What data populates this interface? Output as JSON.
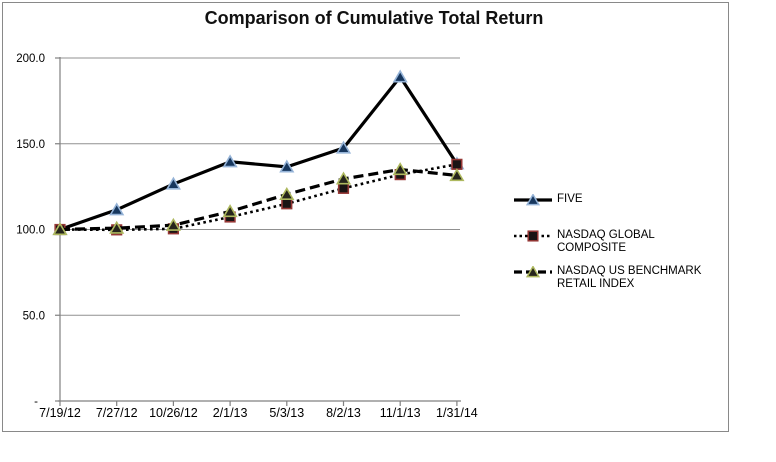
{
  "window": {
    "background": "#ffffff",
    "frame_border_color": "#898989"
  },
  "chart_data": {
    "type": "line",
    "title": "Comparison of Cumulative Total Return",
    "x_categories": [
      "7/19/12",
      "7/27/12",
      "10/26/12",
      "2/1/13",
      "5/3/13",
      "8/2/13",
      "11/1/13",
      "1/31/14"
    ],
    "y_axis": {
      "ticks": [
        {
          "value": 200,
          "label": "200.0"
        },
        {
          "value": 150,
          "label": "150.0"
        },
        {
          "value": 100,
          "label": "100.0"
        },
        {
          "value": 50,
          "label": "50.0"
        },
        {
          "value": 0,
          "label": "-"
        }
      ],
      "range": [
        0,
        200
      ]
    },
    "grid": true,
    "legend_position": "right",
    "grid_color": "#909090",
    "axis_color": "#808080",
    "text_color": "#000000",
    "series": [
      {
        "name": "FIVE",
        "line_color": "#000000",
        "line_width": 3.2,
        "dash": "",
        "legend_dash": "",
        "marker": "triangle",
        "marker_fill": "#17375E",
        "marker_stroke": "#95B3D7",
        "values": [
          100.0,
          111.5,
          126.5,
          139.5,
          136.5,
          147.5,
          189.0,
          138.3
        ]
      },
      {
        "name": "NASDAQ GLOBAL COMPOSITE",
        "line_color": "#000000",
        "line_width": 2.6,
        "dash": "2.6 3.4",
        "legend_dash": "2.5 3",
        "marker": "square",
        "marker_fill": "#1A1414",
        "marker_stroke": "#953735",
        "values": [
          100.0,
          99.8,
          100.4,
          107.3,
          115.0,
          124.0,
          132.0,
          138.0
        ]
      },
      {
        "name": "NASDAQ US BENCHMARK RETAIL INDEX",
        "line_color": "#000000",
        "line_width": 3.2,
        "dash": "10 5",
        "legend_dash": "8 4",
        "marker": "triangle",
        "marker_fill": "#26251C",
        "marker_stroke": "#AEB95F",
        "values": [
          100.0,
          100.8,
          102.5,
          110.5,
          120.5,
          129.5,
          135.0,
          131.5
        ]
      }
    ]
  }
}
